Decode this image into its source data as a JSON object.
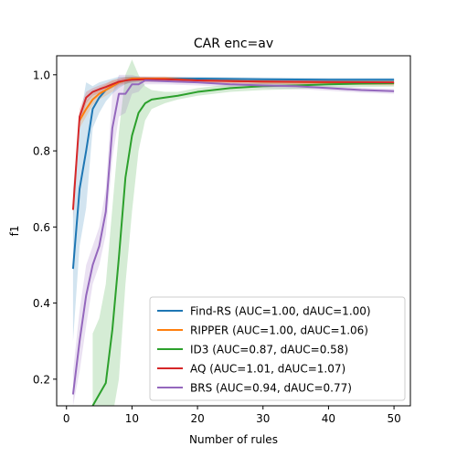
{
  "chart_data": {
    "type": "line",
    "title": "CAR enc=av",
    "xlabel": "Number of rules",
    "ylabel": "f1",
    "xlim": [
      -1.5,
      52.5
    ],
    "ylim": [
      0.13,
      1.05
    ],
    "xticks": [
      0,
      10,
      20,
      30,
      40,
      50
    ],
    "yticks": [
      0.2,
      0.4,
      0.6,
      0.8,
      1.0
    ],
    "xtick_labels": [
      "0",
      "10",
      "20",
      "30",
      "40",
      "50"
    ],
    "ytick_labels": [
      "0.2",
      "0.4",
      "0.6",
      "0.8",
      "1.0"
    ],
    "grid": false,
    "legend_position": "lower-right",
    "series": [
      {
        "name": "Find-RS (AUC=1.00, dAUC=1.00)",
        "color": "#1f77b4",
        "x": [
          1,
          2,
          3,
          4,
          5,
          6,
          7,
          8,
          9,
          10,
          12,
          15,
          20,
          30,
          40,
          50
        ],
        "y": [
          0.49,
          0.7,
          0.8,
          0.91,
          0.94,
          0.96,
          0.97,
          0.98,
          0.985,
          0.988,
          0.99,
          0.99,
          0.99,
          0.988,
          0.987,
          0.987
        ],
        "band_upper": [
          0.7,
          0.88,
          0.98,
          0.97,
          0.98,
          0.985,
          0.99,
          0.995,
          0.995,
          0.995,
          0.995,
          0.995,
          0.995,
          0.993,
          0.992,
          0.992
        ],
        "band_lower": [
          0.3,
          0.55,
          0.65,
          0.86,
          0.9,
          0.93,
          0.95,
          0.965,
          0.975,
          0.98,
          0.985,
          0.985,
          0.985,
          0.983,
          0.982,
          0.982
        ]
      },
      {
        "name": "RIPPER (AUC=1.00, dAUC=1.06)",
        "color": "#ff7f0e",
        "x": [
          2,
          3,
          4,
          5,
          6,
          7,
          8,
          9,
          10,
          12,
          15,
          20,
          30,
          40,
          50
        ],
        "y": [
          0.88,
          0.91,
          0.935,
          0.95,
          0.96,
          0.97,
          0.98,
          0.985,
          0.99,
          0.99,
          0.99,
          0.985,
          0.982,
          0.98,
          0.978
        ],
        "band_upper": [
          0.9,
          0.93,
          0.95,
          0.965,
          0.975,
          0.985,
          0.99,
          0.995,
          0.995,
          0.995,
          0.995,
          0.99,
          0.988,
          0.986,
          0.984
        ],
        "band_lower": [
          0.86,
          0.89,
          0.92,
          0.935,
          0.945,
          0.955,
          0.97,
          0.975,
          0.985,
          0.985,
          0.985,
          0.98,
          0.976,
          0.974,
          0.972
        ]
      },
      {
        "name": "ID3 (AUC=0.87, dAUC=0.58)",
        "color": "#2ca02c",
        "x": [
          4,
          5,
          6,
          7,
          8,
          9,
          10,
          11,
          12,
          13,
          15,
          17,
          20,
          25,
          30,
          35,
          40,
          45,
          50
        ],
        "y": [
          0.13,
          0.16,
          0.19,
          0.33,
          0.52,
          0.73,
          0.84,
          0.9,
          0.925,
          0.935,
          0.94,
          0.945,
          0.955,
          0.965,
          0.97,
          0.972,
          0.975,
          0.977,
          0.978
        ],
        "band_upper": [
          0.32,
          0.36,
          0.45,
          0.65,
          0.85,
          1.0,
          1.04,
          1.0,
          0.97,
          0.96,
          0.955,
          0.955,
          0.965,
          0.975,
          0.98,
          0.982,
          0.984,
          0.986,
          0.987
        ],
        "band_lower": [
          0.1,
          0.1,
          0.1,
          0.1,
          0.2,
          0.45,
          0.64,
          0.8,
          0.88,
          0.91,
          0.925,
          0.935,
          0.945,
          0.955,
          0.96,
          0.962,
          0.966,
          0.968,
          0.969
        ]
      },
      {
        "name": "AQ (AUC=1.01, dAUC=1.07)",
        "color": "#d62728",
        "x": [
          1,
          2,
          3,
          4,
          5,
          6,
          7,
          8,
          9,
          10,
          12,
          15,
          20,
          30,
          40,
          50
        ],
        "y": [
          0.645,
          0.89,
          0.94,
          0.955,
          0.962,
          0.968,
          0.975,
          0.982,
          0.985,
          0.987,
          0.988,
          0.988,
          0.985,
          0.982,
          0.981,
          0.98
        ],
        "band_upper": [
          0.67,
          0.91,
          0.955,
          0.965,
          0.972,
          0.978,
          0.985,
          0.99,
          0.993,
          0.995,
          0.995,
          0.995,
          0.992,
          0.99,
          0.989,
          0.988
        ],
        "band_lower": [
          0.62,
          0.87,
          0.925,
          0.945,
          0.952,
          0.958,
          0.965,
          0.974,
          0.977,
          0.979,
          0.981,
          0.981,
          0.978,
          0.975,
          0.974,
          0.973
        ]
      },
      {
        "name": "BRS (AUC=0.94, dAUC=0.77)",
        "color": "#9467bd",
        "x": [
          1,
          2,
          3,
          4,
          5,
          6,
          7,
          8,
          9,
          10,
          11,
          12,
          15,
          20,
          25,
          30,
          35,
          40,
          45,
          50
        ],
        "y": [
          0.16,
          0.3,
          0.42,
          0.5,
          0.55,
          0.64,
          0.86,
          0.95,
          0.95,
          0.975,
          0.975,
          0.985,
          0.983,
          0.98,
          0.975,
          0.972,
          0.97,
          0.965,
          0.96,
          0.957
        ],
        "band_upper": [
          0.22,
          0.38,
          0.5,
          0.55,
          0.6,
          0.7,
          0.95,
          1.0,
          1.0,
          1.0,
          0.995,
          0.995,
          0.99,
          0.985,
          0.98,
          0.978,
          0.975,
          0.97,
          0.966,
          0.963
        ],
        "band_lower": [
          0.13,
          0.22,
          0.34,
          0.45,
          0.5,
          0.58,
          0.78,
          0.89,
          0.9,
          0.95,
          0.955,
          0.975,
          0.975,
          0.972,
          0.968,
          0.965,
          0.963,
          0.958,
          0.953,
          0.95
        ]
      }
    ]
  }
}
